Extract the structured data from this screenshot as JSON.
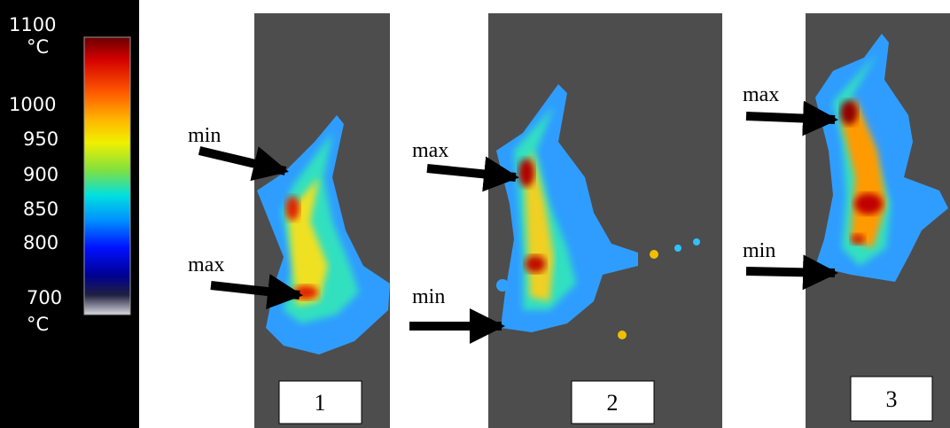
{
  "colorbar": {
    "labels": [
      "1100",
      "°C",
      "1000",
      "950",
      "900",
      "850",
      "800",
      "700",
      "°C"
    ]
  },
  "panels": [
    {
      "label": "1",
      "annotations": [
        "min",
        "max"
      ]
    },
    {
      "label": "2",
      "annotations": [
        "max",
        "min"
      ]
    },
    {
      "label": "3",
      "annotations": [
        "max",
        "min"
      ]
    }
  ]
}
